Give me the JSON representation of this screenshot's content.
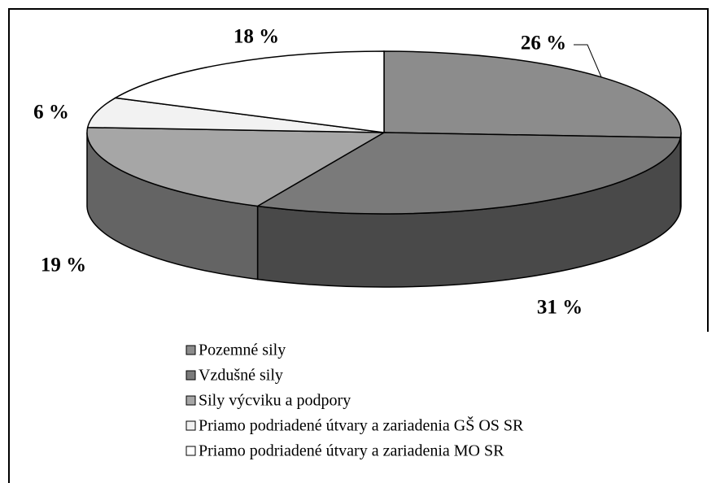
{
  "chart_data": {
    "type": "pie",
    "categories": [
      "Pozemné sily",
      "Vzdušné sily",
      "Sily výcviku a podpory",
      "Priamo podriadené útvary a zariadenia GŠ OS SR",
      "Priamo podriadené útvary a zariadenia MO SR"
    ],
    "values": [
      26,
      31,
      19,
      6,
      18
    ],
    "value_labels": [
      "26 %",
      "31 %",
      "19 %",
      "6 %",
      "18 %"
    ],
    "colors": [
      "#8c8c8c",
      "#7a7a7a",
      "#a6a6a6",
      "#f2f2f2",
      "#ffffff"
    ]
  }
}
